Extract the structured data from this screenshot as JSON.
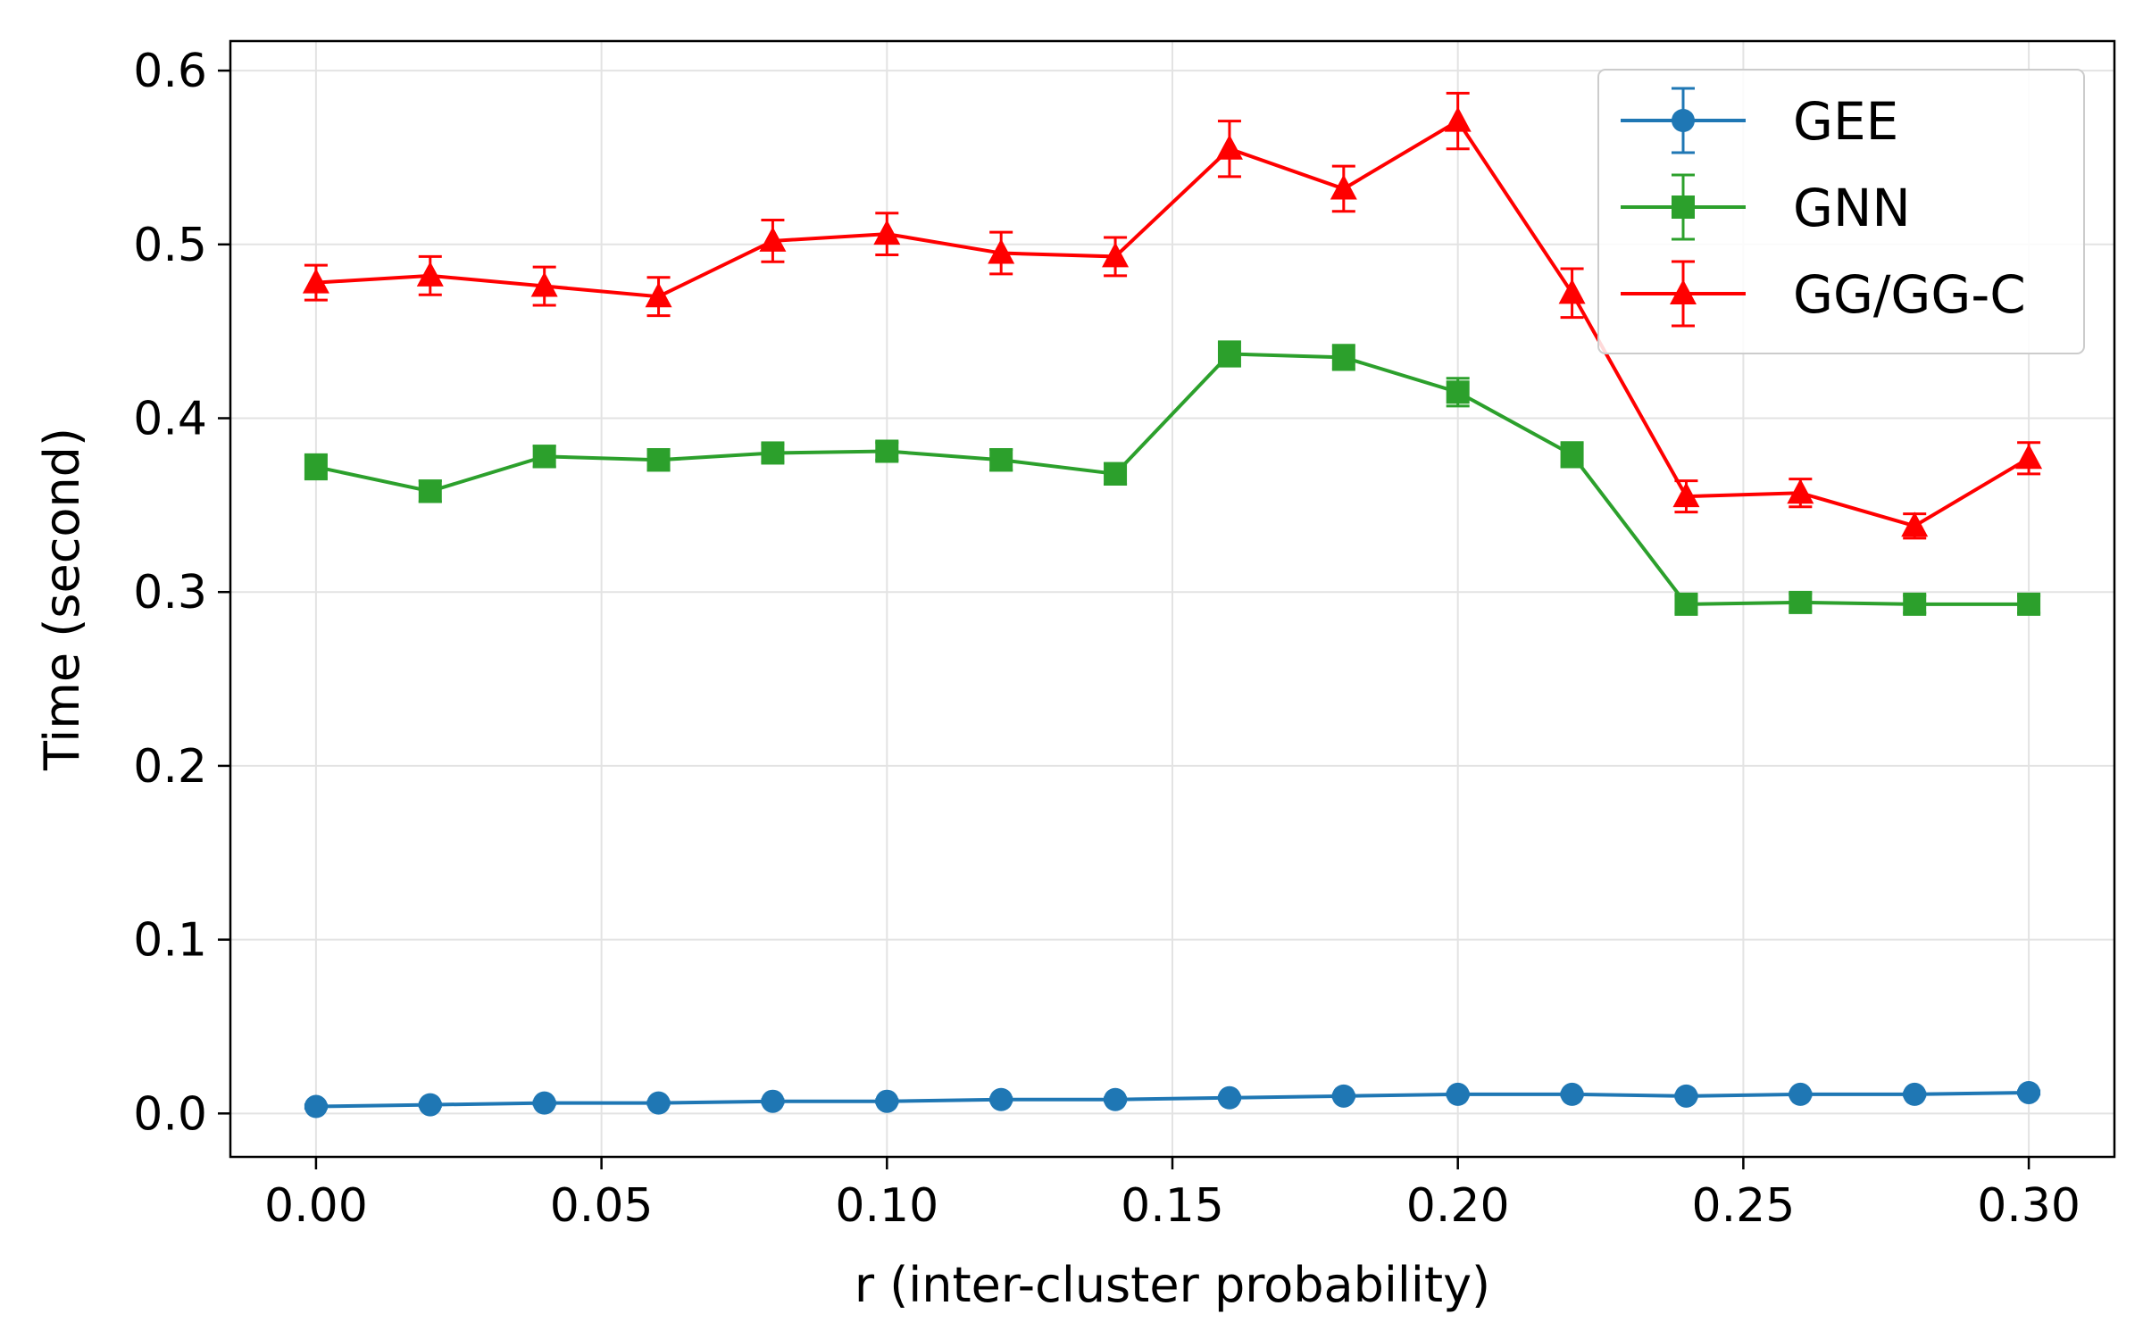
{
  "chart_data": {
    "type": "line",
    "title": "",
    "xlabel": "r (inter-cluster probability)",
    "ylabel": "Time (second)",
    "xlim": [
      -0.015,
      0.315
    ],
    "ylim": [
      -0.025,
      0.617
    ],
    "xticks": [
      0.0,
      0.05,
      0.1,
      0.15,
      0.2,
      0.25,
      0.3
    ],
    "xtick_labels": [
      "0.00",
      "0.05",
      "0.10",
      "0.15",
      "0.20",
      "0.25",
      "0.30"
    ],
    "yticks": [
      0.0,
      0.1,
      0.2,
      0.3,
      0.4,
      0.5,
      0.6
    ],
    "ytick_labels": [
      "0.0",
      "0.1",
      "0.2",
      "0.3",
      "0.4",
      "0.5",
      "0.6"
    ],
    "grid": true,
    "legend_position": "top-right",
    "x": [
      0.0,
      0.02,
      0.04,
      0.06,
      0.08,
      0.1,
      0.12,
      0.14,
      0.16,
      0.18,
      0.2,
      0.22,
      0.24,
      0.26,
      0.28,
      0.3
    ],
    "series": [
      {
        "name": "GEE",
        "color": "#1f77b4",
        "marker": "circle",
        "values": [
          0.004,
          0.005,
          0.006,
          0.006,
          0.007,
          0.007,
          0.008,
          0.008,
          0.009,
          0.01,
          0.011,
          0.011,
          0.01,
          0.011,
          0.011,
          0.012
        ],
        "errors": [
          0.001,
          0.001,
          0.001,
          0.001,
          0.001,
          0.001,
          0.001,
          0.001,
          0.001,
          0.001,
          0.001,
          0.001,
          0.001,
          0.001,
          0.001,
          0.001
        ]
      },
      {
        "name": "GNN",
        "color": "#2ca02c",
        "marker": "square",
        "values": [
          0.372,
          0.358,
          0.378,
          0.376,
          0.38,
          0.381,
          0.376,
          0.368,
          0.437,
          0.435,
          0.415,
          0.379,
          0.293,
          0.294,
          0.293,
          0.293
        ],
        "errors": [
          0.007,
          0.006,
          0.006,
          0.006,
          0.005,
          0.005,
          0.006,
          0.006,
          0.007,
          0.007,
          0.008,
          0.007,
          0.005,
          0.005,
          0.005,
          0.005
        ]
      },
      {
        "name": "GG/GG-C",
        "color": "#ff0000",
        "marker": "triangle",
        "values": [
          0.478,
          0.482,
          0.476,
          0.47,
          0.502,
          0.506,
          0.495,
          0.493,
          0.555,
          0.532,
          0.571,
          0.472,
          0.355,
          0.357,
          0.338,
          0.377
        ],
        "errors": [
          0.01,
          0.011,
          0.011,
          0.011,
          0.012,
          0.012,
          0.012,
          0.011,
          0.016,
          0.013,
          0.016,
          0.014,
          0.009,
          0.008,
          0.007,
          0.009
        ]
      }
    ]
  }
}
